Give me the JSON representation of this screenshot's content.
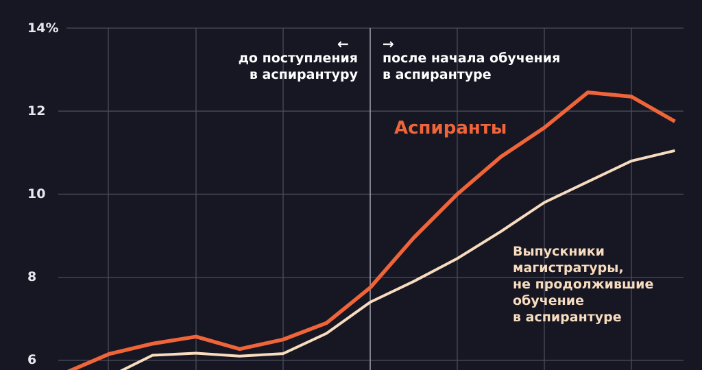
{
  "chart_data": {
    "type": "line",
    "title": "",
    "xlabel": "",
    "ylabel": "",
    "ylim": [
      6,
      14
    ],
    "y_ticks": [
      "14%",
      "12",
      "10",
      "8",
      "6"
    ],
    "grid": true,
    "divider_annotation": {
      "left_arrow": "←",
      "left_text": [
        "до поступления",
        "в аспирантуру"
      ],
      "right_arrow": "→",
      "right_text": [
        "после начала обучения",
        "в аспирантуре"
      ]
    },
    "x_index": [
      0,
      1,
      2,
      3,
      4,
      5,
      6,
      7,
      8,
      9,
      10,
      11,
      12,
      13,
      14
    ],
    "series": [
      {
        "name": "Аспиранты",
        "color": "#f0643a",
        "values": [
          5.7,
          6.15,
          6.4,
          6.57,
          6.27,
          6.5,
          6.9,
          7.75,
          8.95,
          10.0,
          10.9,
          11.6,
          12.45,
          12.35,
          11.75
        ]
      },
      {
        "name": "Выпускники магистратуры, не продолжившие обучение в аспирантуре",
        "color": "#f8dcbf",
        "values": [
          5.5,
          5.6,
          6.12,
          6.17,
          6.1,
          6.16,
          6.65,
          7.4,
          7.9,
          8.45,
          9.1,
          9.8,
          10.3,
          10.8,
          11.05
        ]
      }
    ]
  },
  "labels": {
    "series_orange": "Аспиранты",
    "series_cream_lines": [
      "Выпускники",
      "магистратуры,",
      "не продолжившие",
      "обучение",
      "в аспирантуре"
    ]
  },
  "colors": {
    "background": "#161722",
    "grid": "#4a4c5c",
    "divider": "#9a9cab"
  }
}
